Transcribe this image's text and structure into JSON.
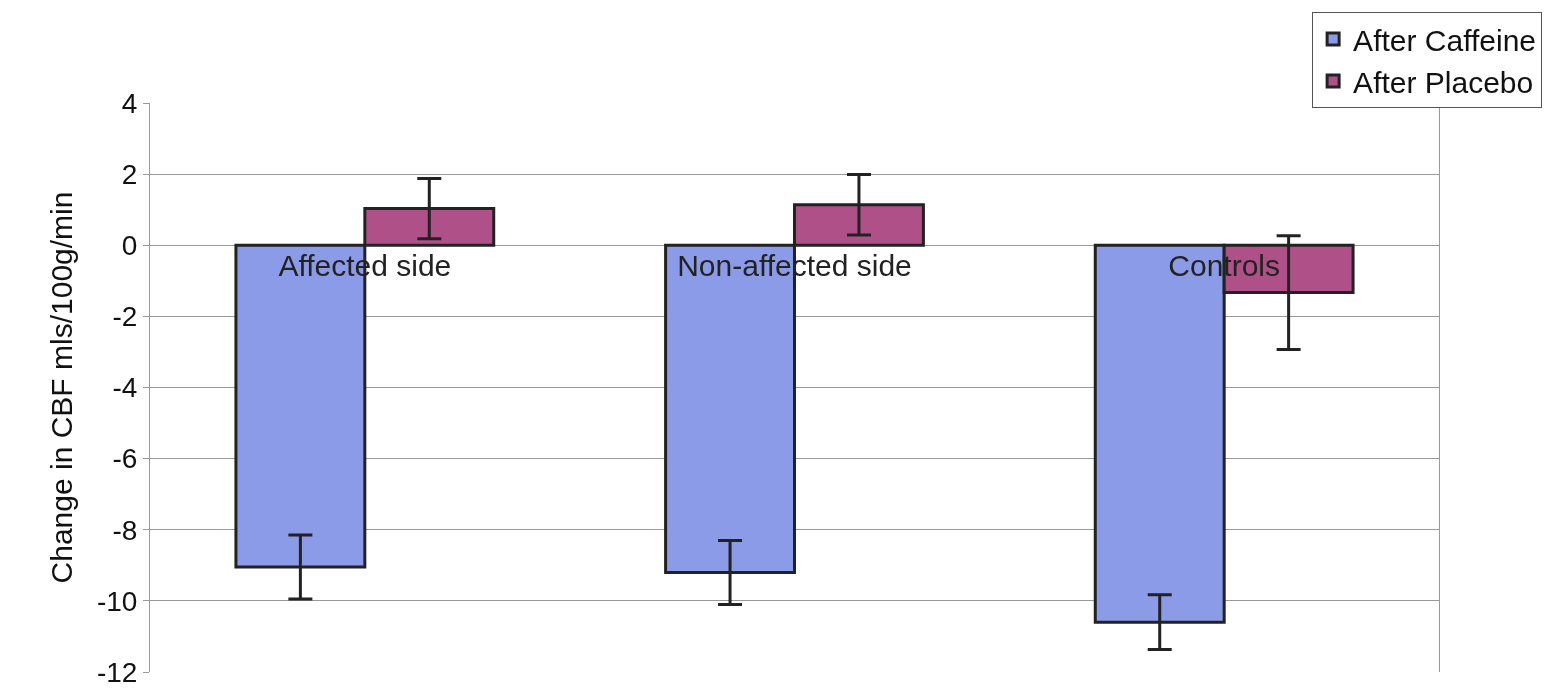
{
  "chart_data": {
    "type": "bar",
    "ylabel": "Change in CBF mls/100g/min",
    "categories": [
      "Affected side",
      "Non-affected side",
      "Controls"
    ],
    "series": [
      {
        "name": "After Caffeine",
        "color": "#8c9be8",
        "values": [
          -9.05,
          -9.2,
          -10.6
        ],
        "errors": [
          0.9,
          0.9,
          0.77
        ]
      },
      {
        "name": "After Placebo",
        "color": "#b05088",
        "values": [
          1.03,
          1.14,
          -1.33
        ],
        "errors": [
          0.85,
          0.85,
          1.6
        ]
      }
    ],
    "ylim": [
      -12,
      4
    ],
    "yticks": [
      -12,
      -10,
      -8,
      -6,
      -4,
      -2,
      0,
      2,
      4
    ],
    "grid": "y",
    "legend": "top right"
  }
}
